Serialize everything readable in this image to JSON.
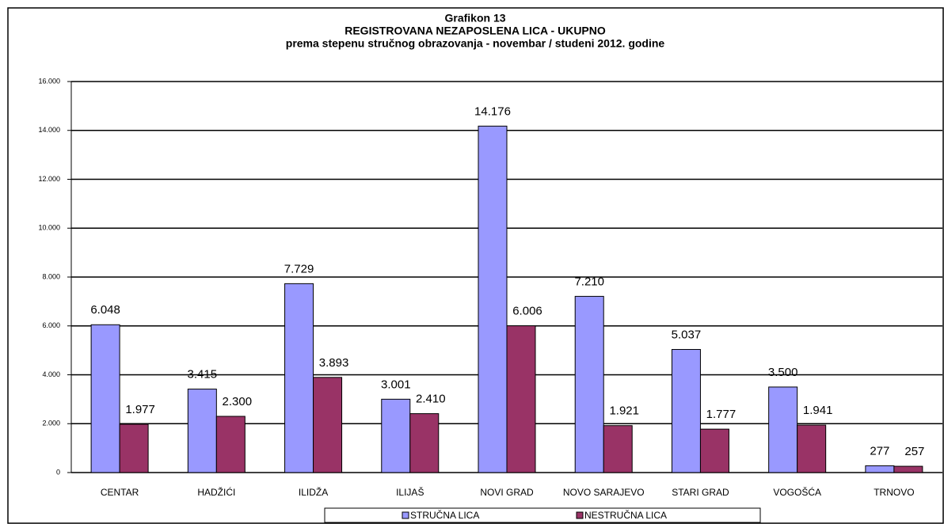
{
  "chart_data": {
    "type": "bar",
    "title": [
      "Grafikon 13",
      "REGISTROVANA NEZAPOSLENA LICA - UKUPNO",
      "prema stepenu stručnog obrazovanja - novembar / studeni  2012. godine"
    ],
    "categories": [
      "CENTAR",
      "HADŽIĆI",
      "ILIDŽA",
      "ILIJAŠ",
      "NOVI GRAD",
      "NOVO SARAJEVO",
      "STARI GRAD",
      "VOGOŠĆA",
      "TRNOVO"
    ],
    "series": [
      {
        "name": "STRUČNA LICA",
        "color": "#9999ff",
        "values": [
          6048,
          3415,
          7729,
          3001,
          14176,
          7210,
          5037,
          3500,
          277
        ],
        "value_labels": [
          "6.048",
          "3.415",
          "7.729",
          "3.001",
          "14.176",
          "7.210",
          "5.037",
          "3.500",
          "277"
        ]
      },
      {
        "name": "NESTRUČNA LICA",
        "color": "#993366",
        "values": [
          1977,
          2300,
          3893,
          2410,
          6006,
          1921,
          1777,
          1941,
          257
        ],
        "value_labels": [
          "1.977",
          "2.300",
          "3.893",
          "2.410",
          "6.006",
          "1.921",
          "1.777",
          "1.941",
          "257"
        ]
      }
    ],
    "ylim": [
      0,
      16000
    ],
    "yticks": [
      0,
      {
        "value": 2000,
        "label": "2.000"
      },
      {
        "value": 4000,
        "label": "4.000"
      },
      {
        "value": 6000,
        "label": "6.000"
      },
      {
        "value": 8000,
        "label": "8.000"
      },
      {
        "value": 10000,
        "label": "10.000"
      },
      {
        "value": 12000,
        "label": "12.000"
      },
      {
        "value": 14000,
        "label": "14.000"
      },
      {
        "value": 16000,
        "label": "16.000"
      }
    ],
    "grid": true,
    "legend": "bottom"
  }
}
